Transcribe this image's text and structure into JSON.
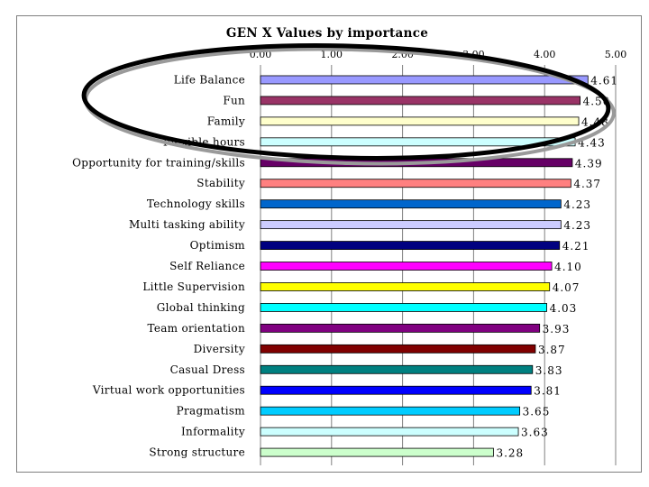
{
  "chart_data": {
    "type": "bar",
    "orientation": "horizontal",
    "title": "GEN X Values by importance",
    "xlim": [
      0,
      5
    ],
    "xticks": [
      "0.00",
      "1.00",
      "2.00",
      "3.00",
      "4.00",
      "5.00"
    ],
    "grid": true,
    "categories": [
      "Life Balance",
      "Fun",
      "Family",
      "Flexible hours",
      "Opportunity for training/skills",
      "Stability",
      "Technology skills",
      "Multi tasking ability",
      "Optimism",
      "Self Reliance",
      "Little Supervision",
      "Global thinking",
      "Team orientation",
      "Diversity",
      "Casual Dress",
      "Virtual work opportunities",
      "Pragmatism",
      "Informality",
      "Strong structure"
    ],
    "values": [
      4.61,
      4.5,
      4.48,
      4.43,
      4.39,
      4.37,
      4.23,
      4.23,
      4.21,
      4.1,
      4.07,
      4.03,
      3.93,
      3.87,
      3.83,
      3.81,
      3.65,
      3.63,
      3.28
    ],
    "value_labels": [
      "4.61",
      "4.50",
      "4.48",
      "4.43",
      "4.39",
      "4.37",
      "4.23",
      "4.23",
      "4.21",
      "4.10",
      "4.07",
      "4.03",
      "3.93",
      "3.87",
      "3.83",
      "3.81",
      "3.65",
      "3.63",
      "3.28"
    ],
    "colors": [
      "#9999ff",
      "#993366",
      "#ffffcc",
      "#ccffff",
      "#660066",
      "#ff8080",
      "#0066cc",
      "#ccccff",
      "#000080",
      "#ff00ff",
      "#ffff00",
      "#00ffff",
      "#800080",
      "#800000",
      "#008080",
      "#0000ff",
      "#00ccff",
      "#ccffff",
      "#ccffcc"
    ],
    "annotation": "hand-drawn ellipse around the top three bars"
  }
}
